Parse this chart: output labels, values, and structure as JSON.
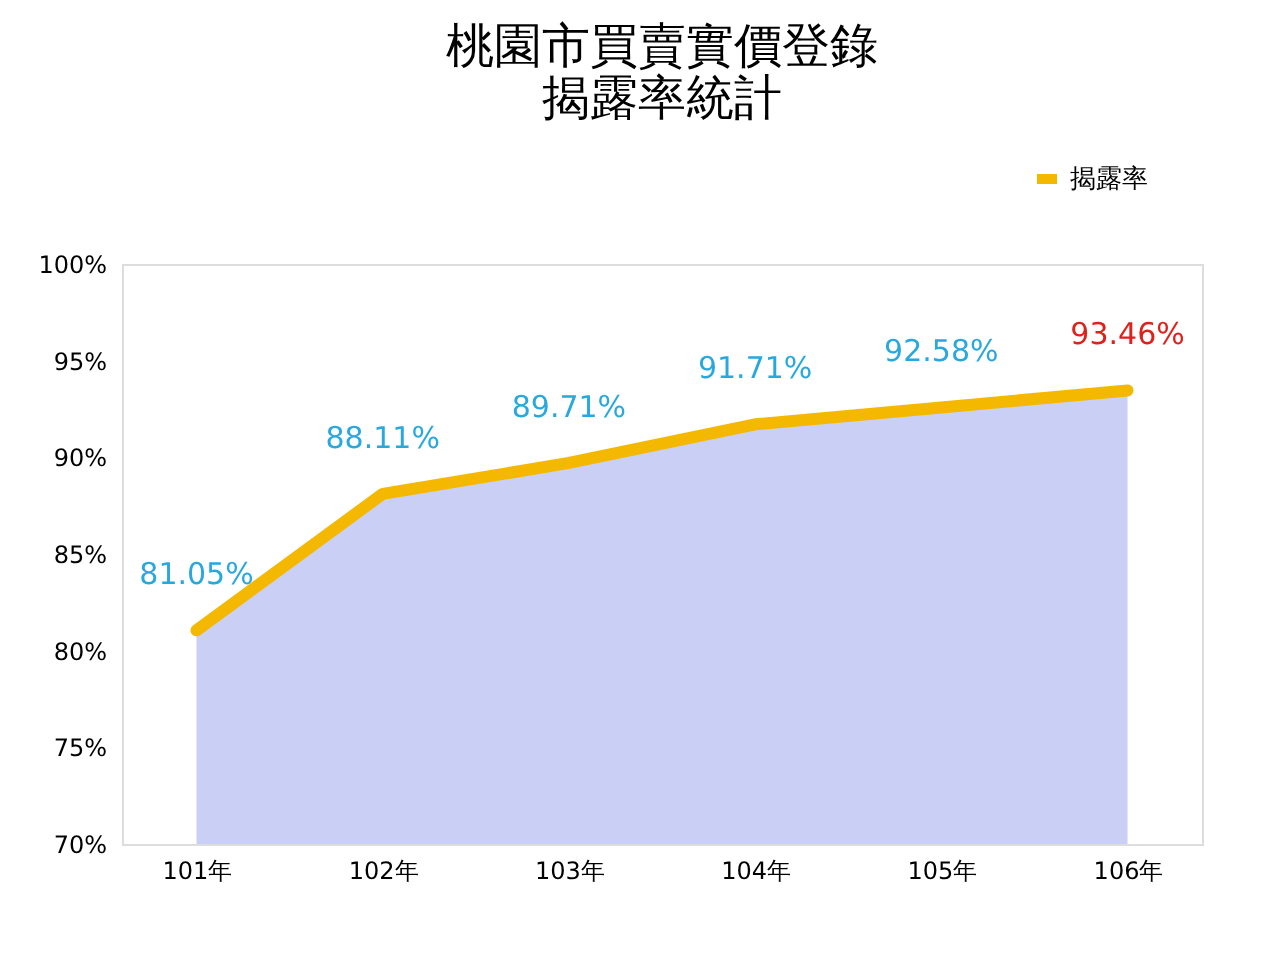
{
  "chart_data": {
    "type": "area",
    "title": [
      "桃園市買賣實價登錄",
      "揭露率統計"
    ],
    "categories": [
      "101年",
      "102年",
      "103年",
      "104年",
      "105年",
      "106年"
    ],
    "series": [
      {
        "color": "#c9cff5",
        "values": [
          81.05,
          88.11,
          89.71,
          91.71,
          92.58,
          93.46
        ]
      },
      {
        "type": "line",
        "name": "揭露率",
        "color": "#f5b800",
        "values": [
          81.05,
          88.11,
          89.71,
          91.71,
          92.58,
          93.46
        ]
      }
    ],
    "value_labels": [
      "81.05%",
      "88.11%",
      "89.71%",
      "91.71%",
      "92.58%",
      "93.46%"
    ],
    "ylim": [
      70,
      100
    ],
    "yticks": [
      {
        "value": 70,
        "label": "70%"
      },
      {
        "value": 75,
        "label": "75%"
      },
      {
        "value": 80,
        "label": "80%"
      },
      {
        "value": 85,
        "label": "85%"
      },
      {
        "value": 90,
        "label": "90%"
      },
      {
        "value": 95,
        "label": "95%"
      },
      {
        "value": 100,
        "label": "100%"
      }
    ],
    "grid": false,
    "legend": "top right"
  }
}
